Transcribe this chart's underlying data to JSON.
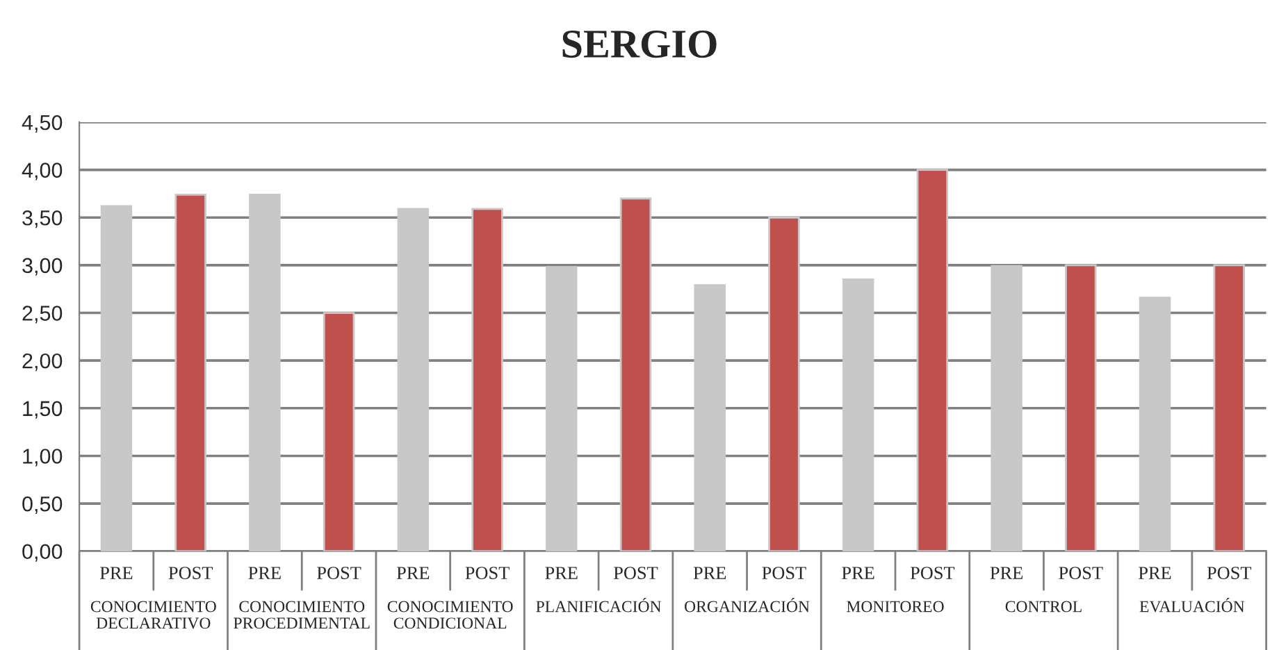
{
  "chart_data": {
    "type": "bar",
    "title": "SERGIO",
    "categories": [
      "PRE",
      "POST",
      "PRE",
      "POST",
      "PRE",
      "POST",
      "PRE",
      "POST",
      "PRE",
      "POST",
      "PRE",
      "POST",
      "PRE",
      "POST",
      "PRE",
      "POST"
    ],
    "values": [
      3.62,
      3.74,
      3.74,
      2.5,
      3.59,
      3.59,
      2.98,
      3.7,
      2.79,
      3.5,
      2.85,
      4.0,
      2.99,
      3.0,
      2.66,
      3.0
    ],
    "colors": [
      "#c8c8c8",
      "#c0504d",
      "#c8c8c8",
      "#c0504d",
      "#c8c8c8",
      "#c0504d",
      "#c8c8c8",
      "#c0504d",
      "#c8c8c8",
      "#c0504d",
      "#c8c8c8",
      "#c0504d",
      "#c8c8c8",
      "#c0504d",
      "#c8c8c8",
      "#c0504d"
    ],
    "annotations": [
      "CONOCIMIENTO\nDECLARATIVO",
      "CONOCIMIENTO\nPROCEDIMENTAL",
      "CONOCIMIENTO\nCONDICIONAL",
      "PLANIFICACIÓN",
      "ORGANIZACIÓN",
      "MONITOREO",
      "CONTROL",
      "EVALUACIÓN"
    ],
    "ylim": [
      0,
      4.5
    ],
    "yticks": [
      {
        "value": 0,
        "label": "0,00"
      },
      {
        "value": 0.5,
        "label": "0,50"
      },
      {
        "value": 1,
        "label": "1,00"
      },
      {
        "value": 1.5,
        "label": "1,50"
      },
      {
        "value": 2,
        "label": "2,00"
      },
      {
        "value": 2.5,
        "label": "2,50"
      },
      {
        "value": 3,
        "label": "3,00"
      },
      {
        "value": 3.5,
        "label": "3,50"
      },
      {
        "value": 4,
        "label": "4,00"
      },
      {
        "value": 4.5,
        "label": "4,50"
      }
    ],
    "grid": "y",
    "legend": false
  }
}
